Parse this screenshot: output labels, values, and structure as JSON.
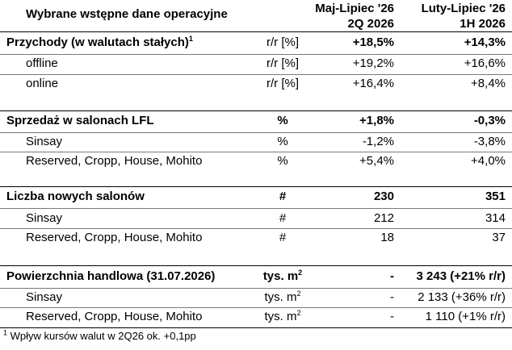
{
  "title": "Wybrane wstępne dane operacyjne",
  "columns": [
    {
      "period": "Maj-Lipiec '26",
      "label": "2Q 2026"
    },
    {
      "period": "Luty-Lipiec '26",
      "label": "1H 2026"
    }
  ],
  "sections": [
    {
      "header": {
        "label": "Przychody (w walutach stałych)",
        "sup": "1",
        "unit": "r/r [%]",
        "v1": "+18,5%",
        "v2": "+14,3%"
      },
      "rows": [
        {
          "label": "offline",
          "unit": "r/r [%]",
          "v1": "+19,2%",
          "v2": "+16,6%"
        },
        {
          "label": "online",
          "unit": "r/r [%]",
          "v1": "+16,4%",
          "v2": "+8,4%"
        }
      ]
    },
    {
      "header": {
        "label": "Sprzedaż w salonach LFL",
        "unit": "%",
        "v1": "+1,8%",
        "v2": "-0,3%"
      },
      "rows": [
        {
          "label": "Sinsay",
          "unit": "%",
          "v1": "-1,2%",
          "v2": "-3,8%"
        },
        {
          "label": "Reserved, Cropp, House, Mohito",
          "unit": "%",
          "v1": "+5,4%",
          "v2": "+4,0%"
        }
      ]
    },
    {
      "header": {
        "label": "Liczba nowych salonów",
        "unit": "#",
        "v1": "230",
        "v2": "351"
      },
      "rows": [
        {
          "label": "Sinsay",
          "unit": "#",
          "v1": "212",
          "v2": "314"
        },
        {
          "label": "Reserved, Cropp, House, Mohito",
          "unit": "#",
          "v1": "18",
          "v2": "37"
        }
      ]
    },
    {
      "header": {
        "label": "Powierzchnia handlowa (31.07.2026)",
        "unit": "tys. m",
        "unit_sup": "2",
        "v1": "-",
        "v2": "3 243 (+21% r/r)"
      },
      "rows": [
        {
          "label": "Sinsay",
          "unit": "tys. m",
          "unit_sup": "2",
          "v1": "-",
          "v2": "2 133 (+36% r/r)"
        },
        {
          "label": "Reserved, Cropp, House, Mohito",
          "unit": "tys. m",
          "unit_sup": "2",
          "v1": "-",
          "v2": "1 110 (+1% r/r)"
        }
      ]
    }
  ],
  "footnote": {
    "mark": "1",
    "text": " Wpływ kursów walut w 2Q26 ok. +0,1pp"
  }
}
